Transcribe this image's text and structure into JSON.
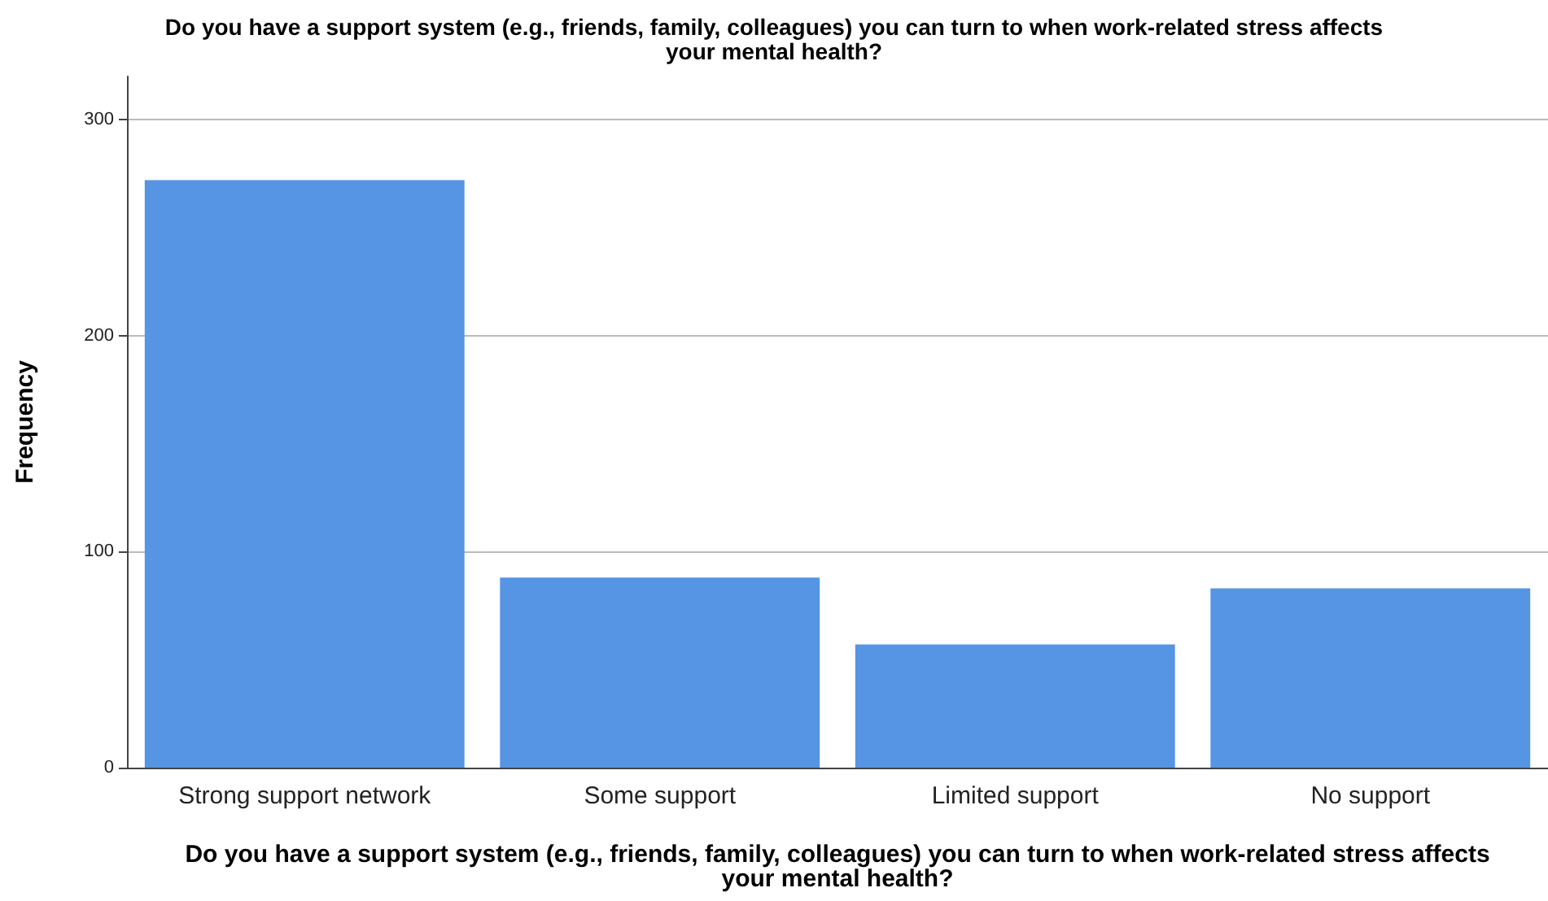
{
  "chart_data": {
    "type": "bar",
    "title": "Do you have a support system (e.g., friends, family, colleagues) you can turn to when work-related stress affects your mental health?",
    "xlabel": "Do you have a support system (e.g., friends, family, colleagues) you can turn to when work-related stress affects your mental health?",
    "ylabel": "Frequency",
    "categories": [
      "Strong support network",
      "Some support",
      "Limited support",
      "No support"
    ],
    "values": [
      272,
      88,
      57,
      83
    ],
    "color": "#5595e3",
    "ylim": [
      0,
      320
    ],
    "yticks": [
      0,
      100,
      200,
      300
    ],
    "grid": "y"
  }
}
